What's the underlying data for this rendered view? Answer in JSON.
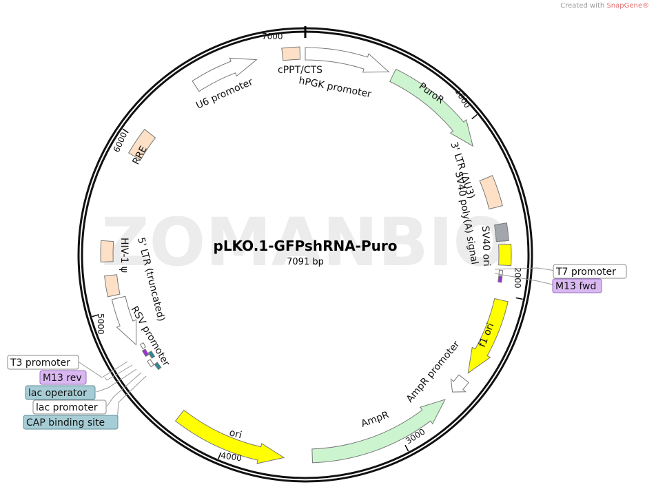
{
  "credit": {
    "prefix": "Created with ",
    "brand": "SnapGene®"
  },
  "watermark": "ZOMANBIO",
  "map": {
    "name": "pLKO.1-GFPshRNA-Puro",
    "length": "7091 bp"
  },
  "ticks": [
    "1000",
    "2000",
    "3000",
    "4000",
    "5000",
    "6000",
    "7000"
  ],
  "features": {
    "cppt": "cPPT/CTS",
    "hpgk": "hPGK promoter",
    "u6": "U6 promoter",
    "puror": "PuroR",
    "ltr3": "3' LTR (ΔU3)",
    "sv40polya": "SV40 poly(A) signal",
    "sv40ori": "SV40 ori",
    "f1ori": "f1 ori",
    "amprprom": "AmpR promoter",
    "ampr": "AmpR",
    "ori": "ori",
    "rsv": "RSV promoter",
    "ltr5": "5' LTR (truncated)",
    "psi": "HIV-1 ψ",
    "rre": "RRE"
  },
  "callouts": {
    "t7": "T7 promoter",
    "m13fwd": "M13 fwd",
    "t3": "T3 promoter",
    "m13rev": "M13 rev",
    "lacop": "lac operator",
    "lacprom": "lac promoter",
    "cap": "CAP binding site"
  },
  "colors": {
    "peach": "#fde0c5",
    "green": "#ccf5cf",
    "yellow": "#ffff00",
    "gray": "#a3a6ad",
    "purple": "#d9b8f1",
    "teal": "#a6cdd5",
    "white": "#ffffff"
  }
}
